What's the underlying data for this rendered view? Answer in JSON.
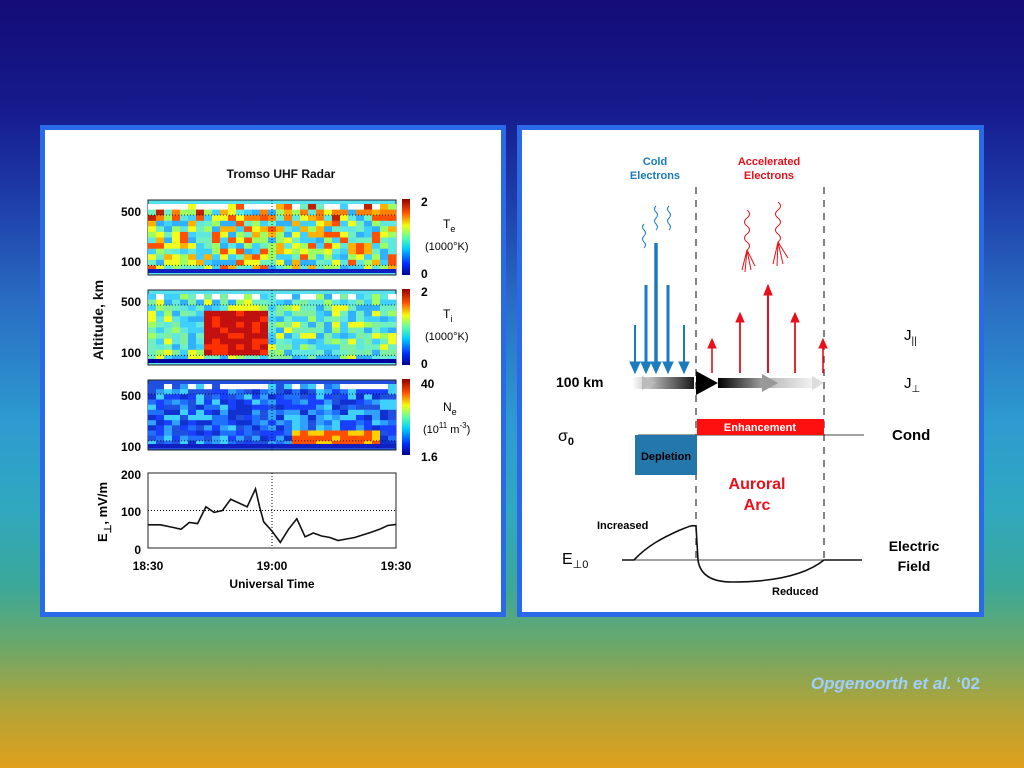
{
  "citation": {
    "authors": "Opgenoorth et al.",
    "year": "‘02"
  },
  "radar": {
    "title": "Tromso UHF Radar",
    "ylabel": "Altitude, km",
    "panels": [
      {
        "name": "T",
        "sub": "e",
        "unit": "(1000°K)",
        "cb_max": "2",
        "cb_min": "0",
        "y_top": "500",
        "y_bottom": "100"
      },
      {
        "name": "T",
        "sub": "i",
        "unit": "(1000°K)",
        "cb_max": "2",
        "cb_min": "0",
        "y_top": "500",
        "y_bottom": "100"
      },
      {
        "name": "N",
        "sub": "e",
        "unit_pre": "(10",
        "unit_exp": "11",
        "unit_mid": " m",
        "unit_exp2": "-3",
        "unit_post": ")",
        "cb_max": "40",
        "cb_min": "1.6",
        "y_top": "500",
        "y_bottom": "100"
      }
    ]
  },
  "efield": {
    "ylabel_main": "E",
    "ylabel_sub": "⊥",
    "ylabel_unit": ", mV/m",
    "xlabel": "Universal Time",
    "xticks": [
      "18:30",
      "19:00",
      "19:30"
    ],
    "yticks": [
      "200",
      "100",
      "0"
    ]
  },
  "chart_data": {
    "type": "line",
    "xlabel": "Universal Time",
    "ylabel": "E⊥, mV/m",
    "xlim": [
      0,
      60
    ],
    "ylim": [
      0,
      200
    ],
    "x": [
      0,
      3,
      6,
      8,
      10,
      12,
      14,
      16,
      18,
      20,
      22,
      24,
      26,
      27,
      28,
      30,
      32,
      34,
      36,
      38,
      40,
      42,
      44,
      46,
      48,
      50,
      52,
      54,
      56,
      58,
      60
    ],
    "y": [
      62,
      62,
      55,
      50,
      68,
      65,
      110,
      95,
      100,
      130,
      120,
      110,
      158,
      110,
      70,
      45,
      15,
      50,
      78,
      30,
      40,
      32,
      28,
      20,
      24,
      28,
      35,
      42,
      50,
      60,
      63
    ],
    "xtick_labels": [
      "18:30",
      "19:00",
      "19:30"
    ]
  },
  "diagram": {
    "cold": "Cold\nElectrons",
    "accel": "Accelerated\nElectrons",
    "km100": "100 km",
    "sigma": "σ",
    "sigma_sub": "0",
    "cond": "Cond",
    "depletion": "Depletion",
    "enhancement": "Enhancement",
    "auroral": "Auroral\nArc",
    "increased": "Increased",
    "reduced": "Reduced",
    "e_main": "E",
    "e_sub": "⊥0",
    "efield_label": "Electric\nField",
    "jpar_main": "J",
    "jpar_sub": "||",
    "jperp_main": "J",
    "jperp_sub": "⊥"
  },
  "colors": {
    "cold": "#1a7bbf",
    "accel": "#e8101a",
    "border": "#2a6ae8",
    "citation": "#9fd0ff"
  }
}
